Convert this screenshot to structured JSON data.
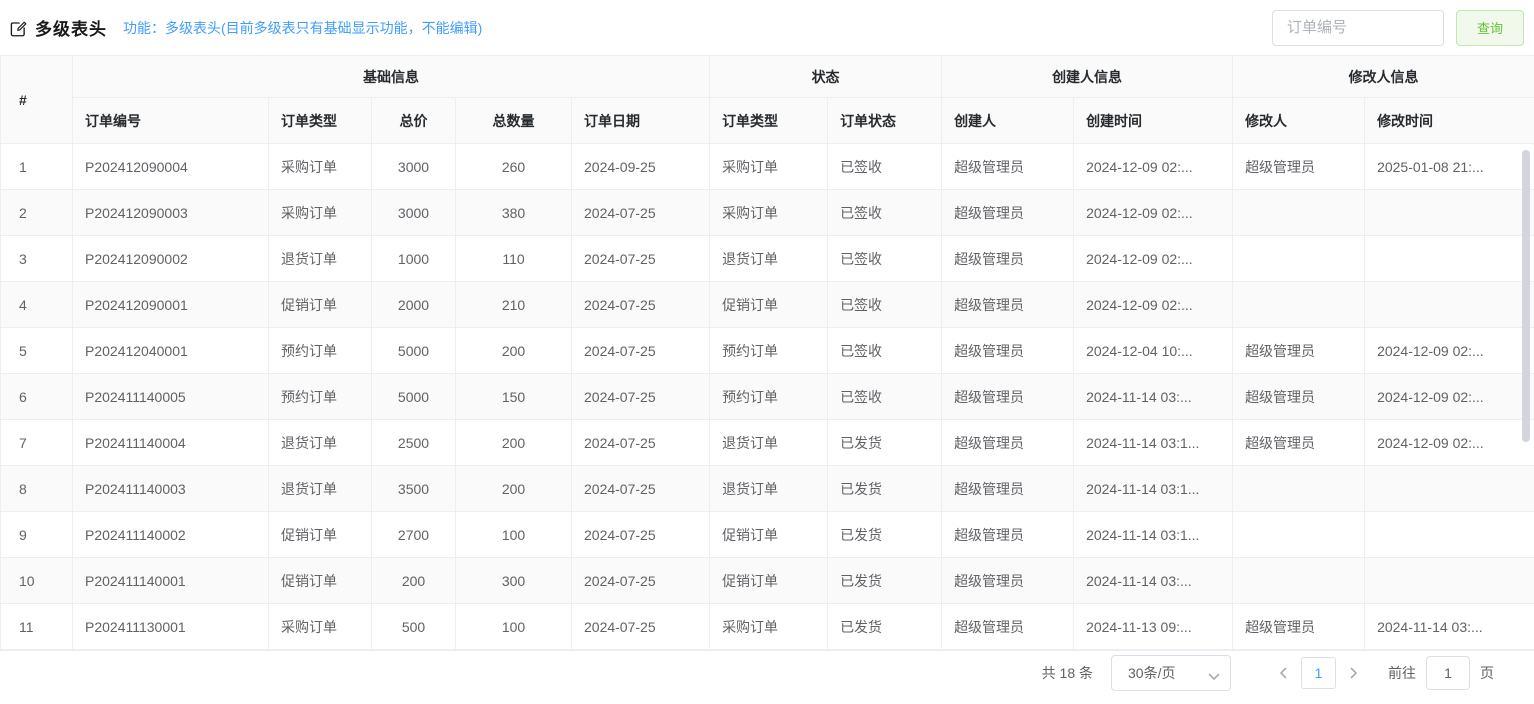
{
  "page": {
    "title": "多级表头",
    "subtitle": "功能：多级表头(目前多级表只有基础显示功能，不能编辑)"
  },
  "search": {
    "placeholder": "订单编号",
    "button_label": "查询"
  },
  "colors": {
    "accent_blue": "#409EFF",
    "success_green": "#67C23A",
    "success_bg": "#F0F9EB",
    "success_border": "#C2E7B0",
    "table_border": "#EBEEF5",
    "stripe_bg": "#FAFAFA",
    "header_text": "#303133",
    "body_text": "#606266"
  },
  "table": {
    "index_header": "#",
    "groups": [
      {
        "label": "基础信息",
        "span": 5
      },
      {
        "label": "状态",
        "span": 2
      },
      {
        "label": "创建人信息",
        "span": 2
      },
      {
        "label": "修改人信息",
        "span": 2
      }
    ],
    "columns": [
      "订单编号",
      "订单类型",
      "总价",
      "总数量",
      "订单日期",
      "订单类型",
      "订单状态",
      "创建人",
      "创建时间",
      "修改人",
      "修改时间"
    ],
    "rows": [
      [
        "1",
        "P202412090004",
        "采购订单",
        "3000",
        "260",
        "2024-09-25",
        "采购订单",
        "已签收",
        "超级管理员",
        "2024-12-09 02:...",
        "超级管理员",
        "2025-01-08 21:..."
      ],
      [
        "2",
        "P202412090003",
        "采购订单",
        "3000",
        "380",
        "2024-07-25",
        "采购订单",
        "已签收",
        "超级管理员",
        "2024-12-09 02:...",
        "",
        ""
      ],
      [
        "3",
        "P202412090002",
        "退货订单",
        "1000",
        "110",
        "2024-07-25",
        "退货订单",
        "已签收",
        "超级管理员",
        "2024-12-09 02:...",
        "",
        ""
      ],
      [
        "4",
        "P202412090001",
        "促销订单",
        "2000",
        "210",
        "2024-07-25",
        "促销订单",
        "已签收",
        "超级管理员",
        "2024-12-09 02:...",
        "",
        ""
      ],
      [
        "5",
        "P202412040001",
        "预约订单",
        "5000",
        "200",
        "2024-07-25",
        "预约订单",
        "已签收",
        "超级管理员",
        "2024-12-04 10:...",
        "超级管理员",
        "2024-12-09 02:..."
      ],
      [
        "6",
        "P202411140005",
        "预约订单",
        "5000",
        "150",
        "2024-07-25",
        "预约订单",
        "已签收",
        "超级管理员",
        "2024-11-14 03:...",
        "超级管理员",
        "2024-12-09 02:..."
      ],
      [
        "7",
        "P202411140004",
        "退货订单",
        "2500",
        "200",
        "2024-07-25",
        "退货订单",
        "已发货",
        "超级管理员",
        "2024-11-14 03:1...",
        "超级管理员",
        "2024-12-09 02:..."
      ],
      [
        "8",
        "P202411140003",
        "退货订单",
        "3500",
        "200",
        "2024-07-25",
        "退货订单",
        "已发货",
        "超级管理员",
        "2024-11-14 03:1...",
        "",
        ""
      ],
      [
        "9",
        "P202411140002",
        "促销订单",
        "2700",
        "100",
        "2024-07-25",
        "促销订单",
        "已发货",
        "超级管理员",
        "2024-11-14 03:1...",
        "",
        ""
      ],
      [
        "10",
        "P202411140001",
        "促销订单",
        "200",
        "300",
        "2024-07-25",
        "促销订单",
        "已发货",
        "超级管理员",
        "2024-11-14 03:...",
        "",
        ""
      ],
      [
        "11",
        "P202411130001",
        "采购订单",
        "500",
        "100",
        "2024-07-25",
        "采购订单",
        "已发货",
        "超级管理员",
        "2024-11-13 09:...",
        "超级管理员",
        "2024-11-14 03:..."
      ]
    ]
  },
  "pagination": {
    "total_label": "共 18 条",
    "page_size_label": "30条/页",
    "current_page": "1",
    "goto_label": "前往",
    "goto_value": "1",
    "page_unit": "页"
  }
}
